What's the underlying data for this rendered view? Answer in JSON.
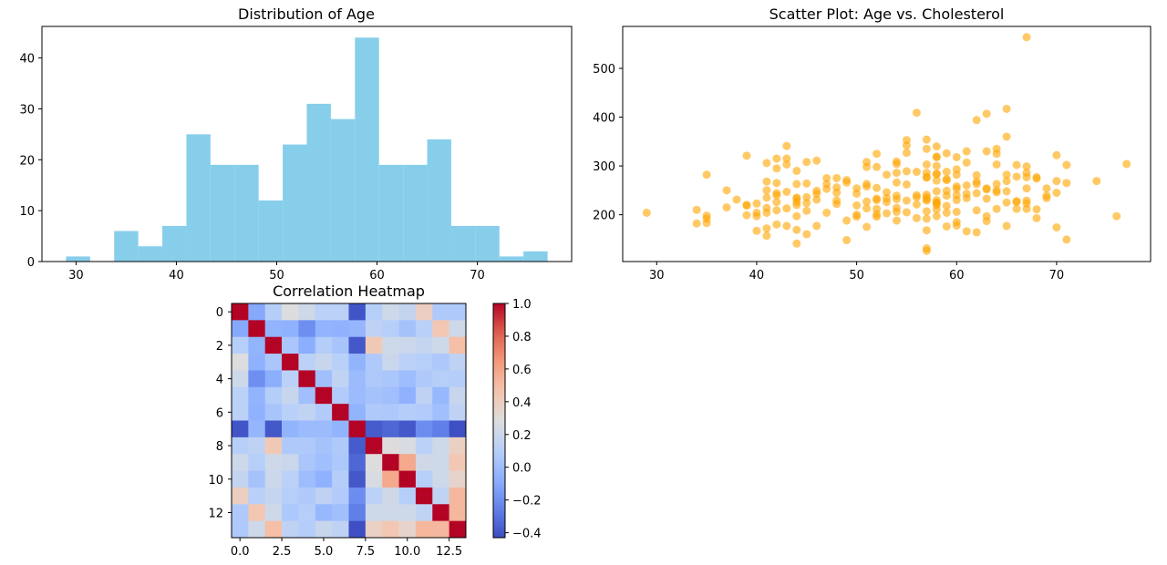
{
  "chart_data": [
    {
      "type": "bar",
      "title": "Distribution of Age",
      "xlabel": "",
      "ylabel": "",
      "xlim": [
        26.6,
        79.4
      ],
      "ylim": [
        0,
        46.2
      ],
      "xticks": [
        30,
        40,
        50,
        60,
        70
      ],
      "yticks": [
        0,
        10,
        20,
        30,
        40
      ],
      "color": "#87ceeb",
      "bin_edges": [
        29,
        31.4,
        33.8,
        36.2,
        38.6,
        41,
        43.4,
        45.8,
        48.2,
        50.6,
        53,
        55.4,
        57.8,
        60.2,
        62.6,
        65,
        67.4,
        69.8,
        72.2,
        74.6,
        77
      ],
      "counts": [
        1,
        0,
        6,
        3,
        7,
        25,
        19,
        19,
        12,
        23,
        31,
        28,
        44,
        19,
        19,
        24,
        7,
        7,
        1,
        2
      ]
    },
    {
      "type": "scatter",
      "title": "Scatter Plot: Age vs. Cholesterol",
      "xlabel": "",
      "ylabel": "",
      "xlim": [
        26.6,
        79.4
      ],
      "ylim": [
        104,
        586
      ],
      "xticks": [
        30,
        40,
        50,
        60,
        70
      ],
      "yticks": [
        200,
        300,
        400,
        500
      ],
      "color": "#ffa500",
      "opacity": 0.6,
      "points": [
        [
          29,
          204
        ],
        [
          34,
          182
        ],
        [
          34,
          210
        ],
        [
          35,
          282
        ],
        [
          35,
          192
        ],
        [
          35,
          183
        ],
        [
          35,
          198
        ],
        [
          37,
          250
        ],
        [
          37,
          215
        ],
        [
          38,
          231
        ],
        [
          39,
          321
        ],
        [
          39,
          199
        ],
        [
          39,
          219
        ],
        [
          39,
          220
        ],
        [
          40,
          167
        ],
        [
          40,
          197
        ],
        [
          40,
          204
        ],
        [
          40,
          223
        ],
        [
          41,
          306
        ],
        [
          41,
          157
        ],
        [
          41,
          172
        ],
        [
          41,
          235
        ],
        [
          41,
          250
        ],
        [
          41,
          268
        ],
        [
          41,
          214
        ],
        [
          41,
          204
        ],
        [
          42,
          295
        ],
        [
          42,
          315
        ],
        [
          42,
          180
        ],
        [
          42,
          244
        ],
        [
          42,
          209
        ],
        [
          42,
          226
        ],
        [
          42,
          240
        ],
        [
          42,
          265
        ],
        [
          43,
          341
        ],
        [
          43,
          315
        ],
        [
          43,
          247
        ],
        [
          43,
          177
        ],
        [
          43,
          213
        ],
        [
          43,
          303
        ],
        [
          44,
          141
        ],
        [
          44,
          290
        ],
        [
          44,
          263
        ],
        [
          44,
          233
        ],
        [
          44,
          220
        ],
        [
          44,
          169
        ],
        [
          44,
          197
        ],
        [
          44,
          226
        ],
        [
          44,
          235
        ],
        [
          45,
          308
        ],
        [
          45,
          160
        ],
        [
          45,
          236
        ],
        [
          45,
          264
        ],
        [
          45,
          208
        ],
        [
          45,
          224
        ],
        [
          46,
          311
        ],
        [
          46,
          243
        ],
        [
          46,
          231
        ],
        [
          46,
          177
        ],
        [
          46,
          249
        ],
        [
          47,
          204
        ],
        [
          47,
          253
        ],
        [
          47,
          263
        ],
        [
          47,
          275
        ],
        [
          48,
          245
        ],
        [
          48,
          222
        ],
        [
          48,
          256
        ],
        [
          48,
          229
        ],
        [
          48,
          275
        ],
        [
          49,
          148
        ],
        [
          49,
          266
        ],
        [
          49,
          188
        ],
        [
          49,
          271
        ],
        [
          50,
          196
        ],
        [
          50,
          243
        ],
        [
          50,
          219
        ],
        [
          50,
          254
        ],
        [
          50,
          200
        ],
        [
          51,
          258
        ],
        [
          51,
          298
        ],
        [
          51,
          175
        ],
        [
          51,
          308
        ],
        [
          51,
          227
        ],
        [
          51,
          213
        ],
        [
          51,
          263
        ],
        [
          52,
          196
        ],
        [
          52,
          325
        ],
        [
          52,
          233
        ],
        [
          52,
          212
        ],
        [
          52,
          230
        ],
        [
          52,
          298
        ],
        [
          52,
          255
        ],
        [
          52,
          201
        ],
        [
          53,
          203
        ],
        [
          53,
          246
        ],
        [
          53,
          282
        ],
        [
          53,
          234
        ],
        [
          53,
          226
        ],
        [
          54,
          304
        ],
        [
          54,
          309
        ],
        [
          54,
          286
        ],
        [
          54,
          214
        ],
        [
          54,
          188
        ],
        [
          54,
          232
        ],
        [
          54,
          266
        ],
        [
          54,
          239
        ],
        [
          54,
          206
        ],
        [
          55,
          353
        ],
        [
          55,
          342
        ],
        [
          55,
          289
        ],
        [
          55,
          262
        ],
        [
          55,
          205
        ],
        [
          55,
          327
        ],
        [
          55,
          229
        ],
        [
          56,
          409
        ],
        [
          56,
          236
        ],
        [
          56,
          240
        ],
        [
          56,
          193
        ],
        [
          56,
          288
        ],
        [
          56,
          221
        ],
        [
          57,
          354
        ],
        [
          57,
          335
        ],
        [
          57,
          303
        ],
        [
          57,
          236
        ],
        [
          57,
          126
        ],
        [
          57,
          131
        ],
        [
          57,
          229
        ],
        [
          57,
          276
        ],
        [
          57,
          192
        ],
        [
          57,
          241
        ],
        [
          57,
          286
        ],
        [
          57,
          207
        ],
        [
          57,
          277
        ],
        [
          57,
          232
        ],
        [
          57,
          168
        ],
        [
          58,
          318
        ],
        [
          58,
          340
        ],
        [
          58,
          248
        ],
        [
          58,
          230
        ],
        [
          58,
          270
        ],
        [
          58,
          224
        ],
        [
          58,
          300
        ],
        [
          58,
          211
        ],
        [
          58,
          220
        ],
        [
          58,
          197
        ],
        [
          58,
          283
        ],
        [
          58,
          319
        ],
        [
          58,
          225
        ],
        [
          58,
          284
        ],
        [
          59,
          326
        ],
        [
          59,
          288
        ],
        [
          59,
          273
        ],
        [
          59,
          176
        ],
        [
          59,
          239
        ],
        [
          59,
          204
        ],
        [
          59,
          218
        ],
        [
          59,
          271
        ],
        [
          59,
          249
        ],
        [
          60,
          318
        ],
        [
          60,
          258
        ],
        [
          60,
          185
        ],
        [
          60,
          178
        ],
        [
          60,
          240
        ],
        [
          60,
          282
        ],
        [
          60,
          230
        ],
        [
          60,
          253
        ],
        [
          60,
          293
        ],
        [
          60,
          206
        ],
        [
          61,
          330
        ],
        [
          61,
          307
        ],
        [
          61,
          234
        ],
        [
          61,
          166
        ],
        [
          61,
          260
        ],
        [
          61,
          243
        ],
        [
          62,
          394
        ],
        [
          62,
          263
        ],
        [
          62,
          209
        ],
        [
          62,
          268
        ],
        [
          62,
          281
        ],
        [
          62,
          244
        ],
        [
          62,
          164
        ],
        [
          63,
          407
        ],
        [
          63,
          330
        ],
        [
          63,
          254
        ],
        [
          63,
          187
        ],
        [
          63,
          197
        ],
        [
          63,
          233
        ],
        [
          63,
          252
        ],
        [
          64,
          335
        ],
        [
          64,
          325
        ],
        [
          64,
          303
        ],
        [
          64,
          212
        ],
        [
          64,
          246
        ],
        [
          64,
          263
        ],
        [
          64,
          250
        ],
        [
          65,
          417
        ],
        [
          65,
          360
        ],
        [
          65,
          282
        ],
        [
          65,
          248
        ],
        [
          65,
          225
        ],
        [
          65,
          269
        ],
        [
          65,
          177
        ],
        [
          66,
          228
        ],
        [
          66,
          302
        ],
        [
          66,
          212
        ],
        [
          66,
          226
        ],
        [
          66,
          278
        ],
        [
          67,
          564
        ],
        [
          67,
          299
        ],
        [
          67,
          212
        ],
        [
          67,
          254
        ],
        [
          67,
          229
        ],
        [
          67,
          277
        ],
        [
          67,
          286
        ],
        [
          67,
          223
        ],
        [
          68,
          274
        ],
        [
          68,
          211
        ],
        [
          68,
          193
        ],
        [
          68,
          277
        ],
        [
          69,
          234
        ],
        [
          69,
          239
        ],
        [
          69,
          254
        ],
        [
          70,
          322
        ],
        [
          70,
          174
        ],
        [
          70,
          269
        ],
        [
          70,
          245
        ],
        [
          71,
          149
        ],
        [
          71,
          265
        ],
        [
          71,
          302
        ],
        [
          74,
          269
        ],
        [
          76,
          197
        ],
        [
          77,
          304
        ]
      ]
    },
    {
      "type": "heatmap",
      "title": "Correlation Heatmap",
      "xlabel": "",
      "ylabel": "",
      "xticks": [
        "0.0",
        "2.5",
        "5.0",
        "7.5",
        "10.0",
        "12.5"
      ],
      "yticks": [
        "0",
        "2",
        "4",
        "6",
        "8",
        "10",
        "12"
      ],
      "colormap": "coolwarm",
      "vmin": -0.43,
      "vmax": 1.0,
      "colorbar_ticks": [
        "1.0",
        "0.8",
        "0.6",
        "0.4",
        "0.2",
        "0.0",
        "−0.2",
        "−0.4"
      ],
      "colorbar_values": [
        1.0,
        0.8,
        0.6,
        0.4,
        0.2,
        0.0,
        -0.2,
        -0.4
      ],
      "matrix": [
        [
          1.0,
          -0.1,
          0.1,
          0.28,
          0.21,
          0.12,
          0.12,
          -0.4,
          0.1,
          0.21,
          0.16,
          0.39,
          0.07,
          0.07
        ],
        [
          -0.1,
          1.0,
          -0.05,
          -0.06,
          -0.2,
          -0.05,
          -0.06,
          -0.04,
          0.14,
          0.1,
          0.03,
          0.11,
          0.44,
          0.21
        ],
        [
          0.1,
          -0.05,
          1.0,
          0.05,
          -0.08,
          0.09,
          0.04,
          -0.39,
          0.43,
          0.21,
          0.2,
          0.17,
          0.21,
          0.49
        ],
        [
          0.28,
          -0.06,
          0.05,
          1.0,
          0.12,
          0.18,
          0.11,
          -0.05,
          0.07,
          0.19,
          0.12,
          0.1,
          0.06,
          0.14
        ],
        [
          0.21,
          -0.2,
          -0.08,
          0.12,
          1.0,
          0.01,
          0.15,
          -0.01,
          0.07,
          0.05,
          -0.0,
          0.07,
          0.1,
          0.09
        ],
        [
          0.12,
          -0.05,
          0.09,
          0.18,
          0.01,
          1.0,
          0.08,
          -0.01,
          0.03,
          0.01,
          -0.06,
          0.14,
          -0.03,
          0.18
        ],
        [
          0.12,
          -0.06,
          0.04,
          0.11,
          0.15,
          0.08,
          1.0,
          -0.05,
          0.07,
          0.06,
          0.09,
          0.08,
          0.01,
          0.14
        ],
        [
          -0.4,
          -0.04,
          -0.39,
          -0.05,
          -0.01,
          -0.01,
          -0.05,
          1.0,
          -0.38,
          -0.34,
          -0.39,
          -0.21,
          -0.26,
          -0.42
        ],
        [
          0.1,
          0.14,
          0.43,
          0.07,
          0.07,
          0.03,
          0.07,
          -0.38,
          1.0,
          0.29,
          0.26,
          0.12,
          0.21,
          0.38
        ],
        [
          0.21,
          0.1,
          0.21,
          0.19,
          0.05,
          0.01,
          0.06,
          -0.34,
          0.29,
          1.0,
          0.58,
          0.22,
          0.21,
          0.44
        ],
        [
          0.16,
          0.03,
          0.2,
          0.12,
          -0.0,
          -0.06,
          0.09,
          -0.39,
          0.26,
          0.58,
          1.0,
          0.1,
          0.21,
          0.35
        ],
        [
          0.39,
          0.11,
          0.17,
          0.1,
          0.07,
          0.14,
          0.08,
          -0.21,
          0.12,
          0.22,
          0.1,
          1.0,
          0.15,
          0.52
        ],
        [
          0.07,
          0.44,
          0.21,
          0.06,
          0.1,
          -0.03,
          0.01,
          -0.26,
          0.21,
          0.21,
          0.21,
          0.15,
          1.0,
          0.52
        ],
        [
          0.07,
          0.21,
          0.49,
          0.14,
          0.09,
          0.18,
          0.14,
          -0.42,
          0.38,
          0.44,
          0.35,
          0.52,
          0.52,
          1.0
        ]
      ]
    }
  ]
}
